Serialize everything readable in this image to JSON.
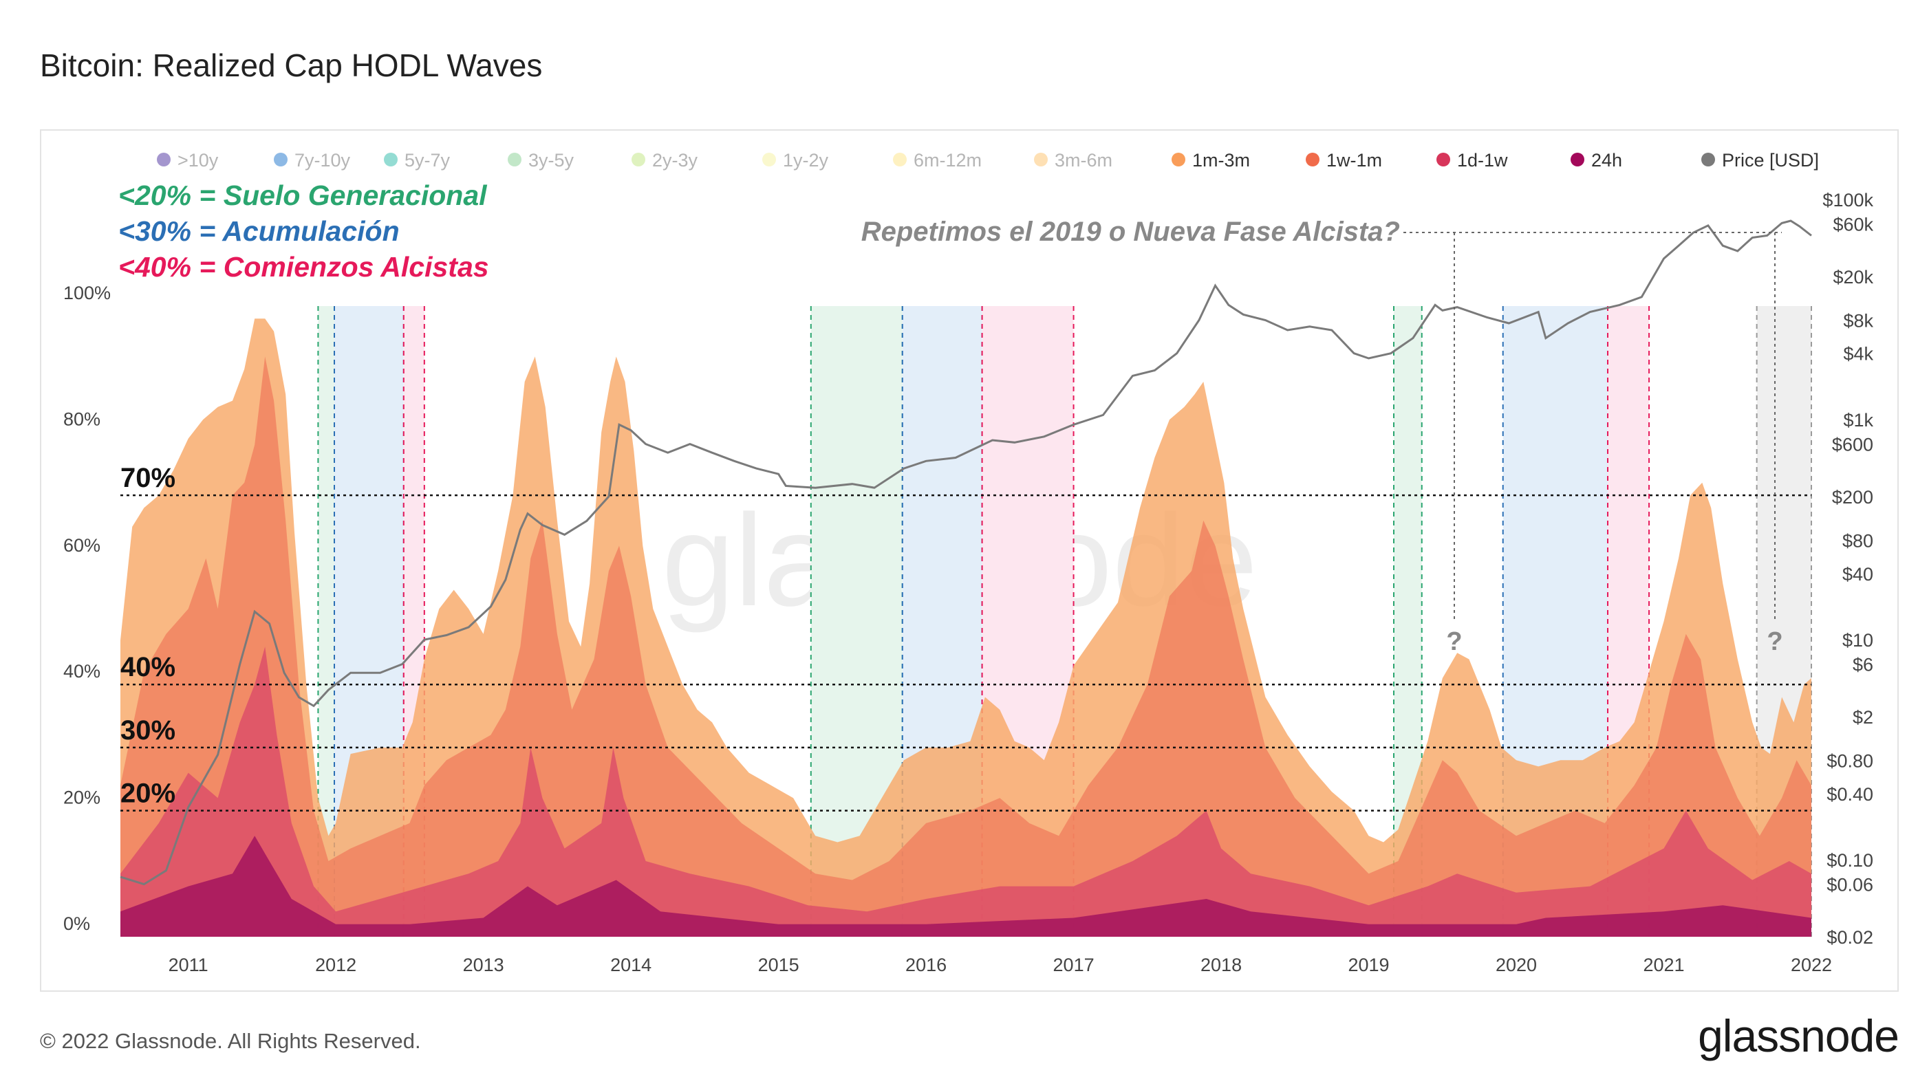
{
  "title": "Bitcoin: Realized Cap HODL Waves",
  "footer": {
    "copyright": "© 2022 Glassnode. All Rights Reserved.",
    "logo": "glassnode"
  },
  "watermark": "glassnode",
  "colors": {
    "price_line": "#7a7a7a",
    "green_zone": "#2aa56f",
    "blue_zone": "#2b6fb5",
    "pink_zone": "#e6195a",
    "grey_zone": "#9a9a9a"
  },
  "chart_data": {
    "type": "area",
    "title": "Bitcoin: Realized Cap HODL Waves",
    "x_ticks": [
      "2011",
      "2012",
      "2013",
      "2014",
      "2015",
      "2016",
      "2017",
      "2018",
      "2019",
      "2020",
      "2021",
      "2022"
    ],
    "x_range": [
      2010.54,
      2022.0
    ],
    "y_left_ticks": [
      "0%",
      "20%",
      "40%",
      "60%",
      "80%",
      "100%"
    ],
    "y_left_range": [
      0,
      100
    ],
    "y_right_scale": "log",
    "y_right_ticks": [
      "$0.02",
      "$0.06",
      "$0.10",
      "$0.40",
      "$0.80",
      "$2",
      "$6",
      "$10",
      "$40",
      "$80",
      "$200",
      "$600",
      "$1k",
      "$4k",
      "$8k",
      "$20k",
      "$60k",
      "$100k"
    ],
    "y_right_tick_values": [
      0.02,
      0.06,
      0.1,
      0.4,
      0.8,
      2,
      6,
      10,
      40,
      80,
      200,
      600,
      1000,
      4000,
      8000,
      20000,
      60000,
      100000
    ],
    "legend": [
      {
        "label": ">10y",
        "color": "#5a3fa6",
        "faded": true
      },
      {
        "label": "7y-10y",
        "color": "#2f7fd0",
        "faded": true
      },
      {
        "label": "5y-7y",
        "color": "#3cbfae",
        "faded": true
      },
      {
        "label": "3y-5y",
        "color": "#8fd49a",
        "faded": true
      },
      {
        "label": "2y-3y",
        "color": "#c4e88b",
        "faded": true
      },
      {
        "label": "1y-2y",
        "color": "#f6f3a6",
        "faded": true
      },
      {
        "label": "6m-12m",
        "color": "#fde58e",
        "faded": true
      },
      {
        "label": "3m-6m",
        "color": "#fdc777",
        "faded": true
      },
      {
        "label": "1m-3m",
        "color": "#f99d59",
        "faded": false
      },
      {
        "label": "1w-1m",
        "color": "#f06b4a",
        "faded": false
      },
      {
        "label": "1d-1w",
        "color": "#d7355a",
        "faded": false
      },
      {
        "label": "24h",
        "color": "#a3085a",
        "faded": false
      },
      {
        "label": "Price [USD]",
        "color": "#7a7a7a",
        "faded": false
      }
    ],
    "annotations": {
      "rules": [
        {
          "text": "<20% = Suelo Generacional",
          "color": "#2aa56f"
        },
        {
          "text": "<30% = Acumulación",
          "color": "#2b6fb5"
        },
        {
          "text": "<40% = Comienzos Alcistas",
          "color": "#e6195a"
        }
      ],
      "question": "Repetimos el 2019 o Nueva Fase Alcista?",
      "question_marks": [
        "?",
        "?"
      ],
      "threshold_labels": [
        "70%",
        "40%",
        "30%",
        "20%"
      ],
      "thresholds": [
        70,
        40,
        30,
        20
      ]
    },
    "zones": [
      {
        "type": "green",
        "x": [
          2011.88,
          2011.99
        ]
      },
      {
        "type": "blue",
        "x": [
          2011.99,
          2012.46
        ]
      },
      {
        "type": "pink",
        "x": [
          2012.46,
          2012.6
        ]
      },
      {
        "type": "green",
        "x": [
          2015.22,
          2015.84
        ]
      },
      {
        "type": "blue",
        "x": [
          2015.84,
          2016.38
        ]
      },
      {
        "type": "pink",
        "x": [
          2016.38,
          2017.0
        ]
      },
      {
        "type": "green",
        "x": [
          2019.17,
          2019.36
        ]
      },
      {
        "type": "blue",
        "x": [
          2019.91,
          2020.62
        ]
      },
      {
        "type": "pink",
        "x": [
          2020.62,
          2020.9
        ]
      },
      {
        "type": "grey",
        "x": [
          2021.63,
          2022.0
        ]
      }
    ],
    "series": [
      {
        "name": "1m-3m",
        "x": [
          2010.54,
          2010.62,
          2010.7,
          2010.8,
          2010.9,
          2011.0,
          2011.1,
          2011.2,
          2011.3,
          2011.38,
          2011.45,
          2011.52,
          2011.58,
          2011.66,
          2011.72,
          2011.8,
          2011.88,
          2011.95,
          2012.0,
          2012.1,
          2012.3,
          2012.45,
          2012.52,
          2012.6,
          2012.7,
          2012.8,
          2012.9,
          2013.0,
          2013.1,
          2013.2,
          2013.28,
          2013.35,
          2013.42,
          2013.5,
          2013.58,
          2013.66,
          2013.72,
          2013.8,
          2013.86,
          2013.9,
          2013.96,
          2014.02,
          2014.08,
          2014.15,
          2014.25,
          2014.35,
          2014.45,
          2014.55,
          2014.65,
          2014.8,
          2014.95,
          2015.1,
          2015.25,
          2015.4,
          2015.55,
          2015.7,
          2015.85,
          2016.0,
          2016.15,
          2016.3,
          2016.4,
          2016.5,
          2016.6,
          2016.7,
          2016.8,
          2016.9,
          2017.0,
          2017.15,
          2017.3,
          2017.45,
          2017.55,
          2017.65,
          2017.75,
          2017.82,
          2017.88,
          2017.95,
          2018.02,
          2018.08,
          2018.15,
          2018.3,
          2018.45,
          2018.6,
          2018.75,
          2018.9,
          2019.0,
          2019.1,
          2019.2,
          2019.3,
          2019.4,
          2019.5,
          2019.6,
          2019.68,
          2019.75,
          2019.82,
          2019.9,
          2020.0,
          2020.15,
          2020.3,
          2020.45,
          2020.6,
          2020.7,
          2020.8,
          2020.9,
          2021.0,
          2021.1,
          2021.18,
          2021.26,
          2021.32,
          2021.4,
          2021.5,
          2021.6,
          2021.66,
          2021.72,
          2021.8,
          2021.88,
          2021.95,
          2022.0
        ],
        "values": [
          47,
          65,
          68,
          70,
          74,
          79,
          82,
          84,
          85,
          90,
          98,
          98,
          96,
          86,
          64,
          40,
          22,
          16,
          18,
          29,
          30,
          30,
          34,
          44,
          52,
          55,
          52,
          48,
          58,
          70,
          88,
          92,
          84,
          66,
          50,
          46,
          56,
          80,
          88,
          92,
          88,
          77,
          62,
          52,
          46,
          40,
          36,
          34,
          30,
          26,
          24,
          22,
          16,
          15,
          16,
          22,
          28,
          30,
          30,
          31,
          38,
          36,
          31,
          30,
          28,
          34,
          43,
          48,
          53,
          68,
          76,
          82,
          84,
          86,
          88,
          80,
          72,
          60,
          52,
          38,
          32,
          27,
          23,
          20,
          16,
          15,
          17,
          24,
          31,
          41,
          45,
          44,
          40,
          36,
          30,
          28,
          27,
          28,
          28,
          30,
          31,
          34,
          42,
          50,
          60,
          70,
          72,
          68,
          56,
          44,
          34,
          30,
          29,
          38,
          34,
          40,
          41
        ]
      },
      {
        "name": "1w-1m",
        "x": [
          2010.54,
          2010.7,
          2010.85,
          2011.0,
          2011.12,
          2011.2,
          2011.3,
          2011.38,
          2011.45,
          2011.52,
          2011.58,
          2011.66,
          2011.75,
          2011.85,
          2011.95,
          2012.1,
          2012.3,
          2012.5,
          2012.6,
          2012.75,
          2012.9,
          2013.05,
          2013.15,
          2013.25,
          2013.32,
          2013.4,
          2013.5,
          2013.6,
          2013.75,
          2013.85,
          2013.92,
          2014.0,
          2014.1,
          2014.25,
          2014.5,
          2014.75,
          2015.0,
          2015.25,
          2015.5,
          2015.75,
          2016.0,
          2016.3,
          2016.5,
          2016.7,
          2016.9,
          2017.1,
          2017.3,
          2017.5,
          2017.65,
          2017.8,
          2017.88,
          2017.96,
          2018.05,
          2018.15,
          2018.3,
          2018.5,
          2018.75,
          2019.0,
          2019.2,
          2019.35,
          2019.5,
          2019.6,
          2019.75,
          2020.0,
          2020.2,
          2020.4,
          2020.6,
          2020.8,
          2020.95,
          2021.05,
          2021.15,
          2021.25,
          2021.35,
          2021.5,
          2021.65,
          2021.8,
          2021.9,
          2022.0
        ],
        "values": [
          24,
          42,
          48,
          52,
          60,
          52,
          70,
          72,
          78,
          92,
          85,
          66,
          40,
          20,
          12,
          14,
          16,
          18,
          24,
          28,
          30,
          32,
          36,
          46,
          60,
          66,
          48,
          36,
          44,
          58,
          62,
          54,
          40,
          30,
          24,
          18,
          14,
          10,
          9,
          12,
          18,
          20,
          22,
          18,
          16,
          24,
          30,
          40,
          54,
          58,
          66,
          62,
          54,
          44,
          30,
          22,
          16,
          10,
          12,
          20,
          28,
          26,
          20,
          16,
          18,
          20,
          18,
          24,
          30,
          40,
          48,
          44,
          30,
          22,
          16,
          22,
          28,
          24
        ]
      },
      {
        "name": "1d-1w",
        "x": [
          2010.54,
          2010.8,
          2011.0,
          2011.2,
          2011.35,
          2011.45,
          2011.52,
          2011.6,
          2011.7,
          2011.85,
          2012.0,
          2012.3,
          2012.6,
          2012.9,
          2013.1,
          2013.25,
          2013.32,
          2013.4,
          2013.55,
          2013.8,
          2013.88,
          2013.95,
          2014.1,
          2014.4,
          2014.8,
          2015.2,
          2015.6,
          2016.0,
          2016.5,
          2017.0,
          2017.4,
          2017.7,
          2017.9,
          2018.0,
          2018.2,
          2018.6,
          2019.0,
          2019.4,
          2019.6,
          2020.0,
          2020.5,
          2021.0,
          2021.15,
          2021.3,
          2021.6,
          2021.85,
          2022.0
        ],
        "values": [
          10,
          18,
          26,
          22,
          34,
          40,
          46,
          32,
          18,
          8,
          4,
          6,
          8,
          10,
          12,
          18,
          30,
          22,
          14,
          18,
          30,
          22,
          12,
          10,
          8,
          5,
          4,
          6,
          8,
          8,
          12,
          16,
          20,
          14,
          10,
          8,
          5,
          8,
          10,
          7,
          8,
          14,
          20,
          14,
          9,
          12,
          10
        ]
      },
      {
        "name": "24h",
        "x": [
          2010.54,
          2011.0,
          2011.3,
          2011.45,
          2011.55,
          2011.7,
          2012.0,
          2012.5,
          2013.0,
          2013.3,
          2013.5,
          2013.9,
          2014.2,
          2015.0,
          2016.0,
          2017.0,
          2017.9,
          2018.2,
          2019.0,
          2020.0,
          2020.2,
          2021.0,
          2021.4,
          2022.0
        ],
        "values": [
          4,
          8,
          10,
          16,
          12,
          6,
          2,
          2,
          3,
          8,
          5,
          9,
          4,
          2,
          2,
          3,
          6,
          4,
          2,
          2,
          3,
          4,
          5,
          3
        ]
      },
      {
        "name": "Price [USD]",
        "x": [
          2010.54,
          2010.7,
          2010.85,
          2011.0,
          2011.2,
          2011.35,
          2011.45,
          2011.55,
          2011.65,
          2011.75,
          2011.85,
          2011.95,
          2012.1,
          2012.3,
          2012.45,
          2012.6,
          2012.75,
          2012.9,
          2013.05,
          2013.15,
          2013.25,
          2013.3,
          2013.4,
          2013.55,
          2013.7,
          2013.85,
          2013.92,
          2014.0,
          2014.1,
          2014.25,
          2014.4,
          2014.55,
          2014.7,
          2014.85,
          2015.0,
          2015.05,
          2015.25,
          2015.5,
          2015.65,
          2015.85,
          2016.0,
          2016.2,
          2016.45,
          2016.6,
          2016.8,
          2017.0,
          2017.2,
          2017.4,
          2017.55,
          2017.7,
          2017.85,
          2017.96,
          2018.05,
          2018.15,
          2018.3,
          2018.45,
          2018.6,
          2018.75,
          2018.9,
          2019.0,
          2019.15,
          2019.3,
          2019.45,
          2019.5,
          2019.6,
          2019.8,
          2019.95,
          2020.15,
          2020.2,
          2020.35,
          2020.5,
          2020.7,
          2020.85,
          2021.0,
          2021.1,
          2021.2,
          2021.3,
          2021.4,
          2021.5,
          2021.6,
          2021.7,
          2021.8,
          2021.86,
          2021.92,
          2022.0
        ],
        "values": [
          0.07,
          0.06,
          0.08,
          0.3,
          0.9,
          6,
          18,
          14,
          5,
          3,
          2.5,
          3.5,
          5,
          5,
          6,
          10,
          11,
          13,
          20,
          35,
          100,
          140,
          110,
          90,
          120,
          200,
          900,
          800,
          600,
          500,
          600,
          500,
          420,
          360,
          320,
          250,
          240,
          260,
          240,
          360,
          420,
          450,
          650,
          620,
          700,
          900,
          1100,
          2500,
          2800,
          4000,
          8000,
          16500,
          11000,
          9000,
          8000,
          6500,
          7000,
          6500,
          4000,
          3600,
          4000,
          5500,
          11000,
          9800,
          10500,
          8500,
          7500,
          9500,
          5500,
          7500,
          9500,
          11000,
          13000,
          29000,
          38000,
          50000,
          58000,
          38000,
          34000,
          45000,
          47000,
          61000,
          64000,
          57000,
          47000
        ]
      }
    ]
  }
}
